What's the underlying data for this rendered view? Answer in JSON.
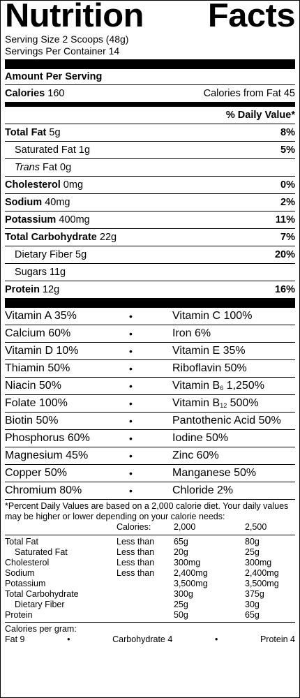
{
  "header": {
    "title_left": "Nutrition",
    "title_right": "Facts",
    "serving_size": "Serving Size 2 Scoops (48g)",
    "servings_per_container": "Servings Per Container 14"
  },
  "amount_per_serving": "Amount Per Serving",
  "calories": {
    "label": "Calories",
    "value": "160",
    "from_fat": "Calories from Fat 45"
  },
  "dv_header": "% Daily Value*",
  "nutrients": [
    {
      "label": "Total Fat",
      "amount": "5g",
      "dv": "8%"
    },
    {
      "label": "Saturated Fat",
      "amount": "1g",
      "dv": "5%"
    },
    {
      "label": "Trans",
      "amount": "Fat 0g",
      "dv": ""
    },
    {
      "label": "Cholesterol",
      "amount": "0mg",
      "dv": "0%"
    },
    {
      "label": "Sodium",
      "amount": "40mg",
      "dv": "2%"
    },
    {
      "label": "Potassium",
      "amount": "400mg",
      "dv": "11%"
    },
    {
      "label": "Total Carbohydrate",
      "amount": "22g",
      "dv": "7%"
    },
    {
      "label": "Dietary Fiber",
      "amount": "5g",
      "dv": "20%"
    },
    {
      "label": "Sugars",
      "amount": "11g",
      "dv": ""
    },
    {
      "label": "Protein",
      "amount": "12g",
      "dv": "16%"
    }
  ],
  "vitamins": [
    {
      "left": "Vitamin A 35%",
      "right": "Vitamin C 100%"
    },
    {
      "left": "Calcium 60%",
      "right": "Iron 6%"
    },
    {
      "left": "Vitamin D 10%",
      "right": "Vitamin E 35%"
    },
    {
      "left": "Thiamin 50%",
      "right": "Riboflavin 50%"
    },
    {
      "left": "Niacin 50%",
      "right_a": "Vitamin B",
      "right_sub": "6",
      "right_b": " 1,250%"
    },
    {
      "left": "Folate 100%",
      "right_a": "Vitamin B",
      "right_sub": "12",
      "right_b": " 500%"
    },
    {
      "left": "Biotin 50%",
      "right": "Pantothenic Acid 50%"
    },
    {
      "left": "Phosphorus 60%",
      "right": "Iodine 50%"
    },
    {
      "left": "Magnesium 45%",
      "right": "Zinc 60%"
    },
    {
      "left": "Copper 50%",
      "right": "Manganese 50%"
    },
    {
      "left": "Chromium 80%",
      "right": "Chloride 2%"
    }
  ],
  "bullet": "•",
  "footnote": "*Percent Daily Values are based on a 2,000 calorie diet. Your daily values may be higher or lower depending on your calorie needs:",
  "table": {
    "header": [
      "Calories:",
      "2,000",
      "2,500"
    ],
    "rows": [
      [
        "Total Fat",
        "Less than",
        "65g",
        "80g"
      ],
      [
        "Saturated Fat",
        "Less than",
        "20g",
        "25g"
      ],
      [
        "Cholesterol",
        "Less than",
        "300mg",
        "300mg"
      ],
      [
        "Sodium",
        "Less than",
        "2,400mg",
        "2,400mg"
      ],
      [
        "Potassium",
        "",
        "3,500mg",
        "3,500mg"
      ],
      [
        "Total Carbohydrate",
        "",
        "300g",
        "375g"
      ],
      [
        "Dietary Fiber",
        "",
        "25g",
        "30g"
      ],
      [
        "Protein",
        "",
        "50g",
        "65g"
      ]
    ]
  },
  "per_gram": {
    "label": "Calories per gram:",
    "fat": "Fat 9",
    "carb": "Carbohydrate 4",
    "protein": "Protein 4"
  }
}
